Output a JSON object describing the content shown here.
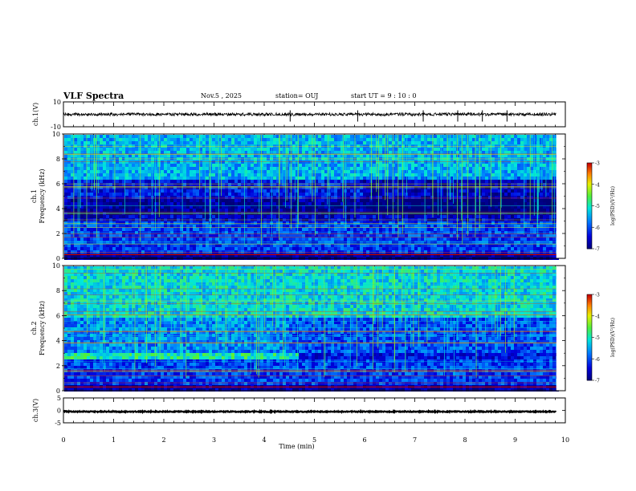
{
  "header": {
    "title": "VLF Spectra",
    "date": "Nov.5  , 2025",
    "station": "station= OUJ",
    "start_ut": "start  UT  =   9  : 10 : 0"
  },
  "chart_data": [
    {
      "type": "line",
      "panel": "ch1-waveform",
      "ylabel": "ch.1(V)",
      "ylim": [
        -10,
        10
      ],
      "yticks": [
        "10",
        "-10"
      ],
      "series": [
        {
          "name": "ch.1",
          "level": 0,
          "amplitude": 1.2,
          "color": "#000000"
        }
      ]
    },
    {
      "type": "heatmap",
      "panel": "ch1-spectrogram",
      "ylabel_top": "ch.1",
      "ylabel": "Frequency (kHz)",
      "ylim": [
        0,
        10
      ],
      "yticks": [
        "0",
        "2",
        "4",
        "6",
        "8",
        "10"
      ],
      "colorbar": {
        "label": "log(PSD)(V²/Hz)",
        "range": [
          -7,
          -3
        ],
        "ticks": [
          "-3",
          "-4",
          "-5",
          "-6",
          "-7"
        ]
      }
    },
    {
      "type": "heatmap",
      "panel": "ch2-spectrogram",
      "ylabel_top": "ch.2",
      "ylabel": "Frequency (kHz)",
      "ylim": [
        0,
        10
      ],
      "yticks": [
        "0",
        "2",
        "4",
        "6",
        "8",
        "10"
      ],
      "colorbar": {
        "label": "log(PSD)(V²/Hz)",
        "range": [
          -7,
          -3
        ],
        "ticks": [
          "-3",
          "-4",
          "-5",
          "-6",
          "-7"
        ]
      }
    },
    {
      "type": "line",
      "panel": "ch3-waveform",
      "ylabel": "ch.3(V)",
      "ylim": [
        -5,
        5
      ],
      "yticks": [
        "5",
        "0",
        "-5"
      ],
      "series": [
        {
          "name": "ch.3",
          "level": -0.5,
          "amplitude": 0.2,
          "color": "#000000"
        }
      ]
    }
  ],
  "xaxis": {
    "label": "Time  (min)",
    "range": [
      0,
      10
    ],
    "data_end": 9.82,
    "ticks": [
      "0",
      "1",
      "2",
      "3",
      "4",
      "5",
      "6",
      "7",
      "8",
      "9",
      "10"
    ]
  }
}
